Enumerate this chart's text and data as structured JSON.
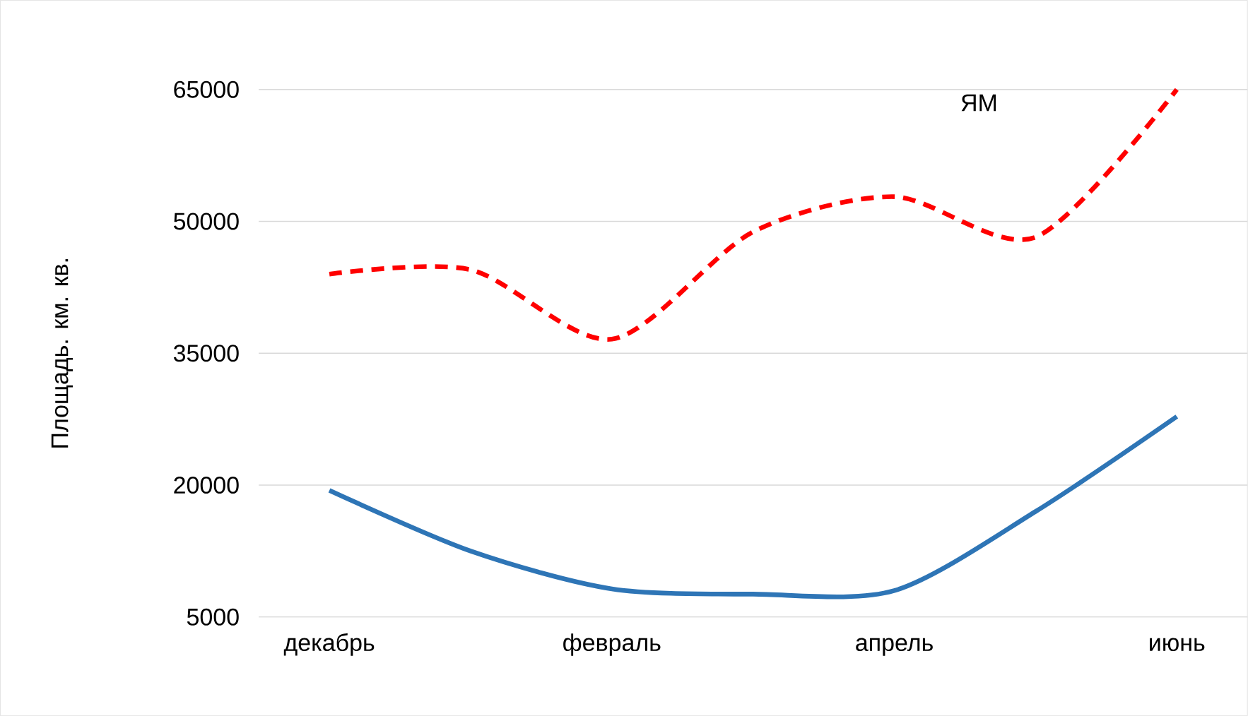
{
  "chart_data": {
    "type": "line",
    "ylabel": "Площадь. км. кв.",
    "categories": [
      "декабрь",
      null,
      "февраль",
      null,
      "апрель",
      null,
      "июнь"
    ],
    "series": [
      {
        "color": "#2e75b6",
        "line_style": "solid",
        "values": [
          19400,
          12500,
          8200,
          7600,
          8000,
          17000,
          27800
        ]
      },
      {
        "name": "ЯМ",
        "color": "#ff0000",
        "line_style": "dashed",
        "values": [
          44000,
          44500,
          36600,
          48800,
          52800,
          48200,
          65000
        ]
      }
    ],
    "ylim": [
      5000,
      65000
    ],
    "yticks": [
      5000,
      20000,
      35000,
      50000,
      65000
    ],
    "grid": "y",
    "legend": false,
    "marker": "none"
  }
}
